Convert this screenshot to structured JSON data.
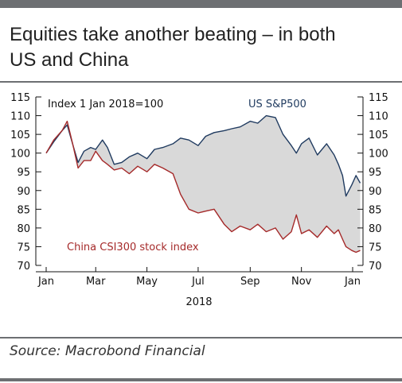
{
  "title_line1": "Equities take another beating – in both",
  "title_line2": "US and China",
  "source": "Source: Macrobond Financial",
  "chart_data": {
    "type": "line",
    "subtitle": "Index 1 Jan 2018=100",
    "xlabel": "2018",
    "x_ticks": [
      "Jan",
      "Mar",
      "May",
      "Jul",
      "Sep",
      "Nov",
      "Jan"
    ],
    "x_tick_dates": [
      "2018-01-01",
      "2018-03-01",
      "2018-05-01",
      "2018-07-01",
      "2018-09-01",
      "2018-11-01",
      "2019-01-01"
    ],
    "ylim": [
      70,
      115
    ],
    "yticks": [
      70,
      75,
      80,
      85,
      90,
      95,
      100,
      105,
      110,
      115
    ],
    "fill_between": true,
    "series": [
      {
        "name": "US S&P500",
        "color": "#1f3a5f",
        "x": [
          "2018-01-01",
          "2018-01-10",
          "2018-01-20",
          "2018-01-26",
          "2018-02-02",
          "2018-02-08",
          "2018-02-15",
          "2018-02-23",
          "2018-03-01",
          "2018-03-09",
          "2018-03-15",
          "2018-03-23",
          "2018-04-01",
          "2018-04-10",
          "2018-04-20",
          "2018-05-01",
          "2018-05-10",
          "2018-05-20",
          "2018-06-01",
          "2018-06-10",
          "2018-06-20",
          "2018-07-01",
          "2018-07-10",
          "2018-07-20",
          "2018-08-01",
          "2018-08-10",
          "2018-08-20",
          "2018-09-01",
          "2018-09-10",
          "2018-09-20",
          "2018-10-01",
          "2018-10-10",
          "2018-10-20",
          "2018-10-26",
          "2018-11-01",
          "2018-11-10",
          "2018-11-20",
          "2018-12-01",
          "2018-12-10",
          "2018-12-15",
          "2018-12-20",
          "2018-12-24",
          "2018-12-31",
          "2019-01-05",
          "2019-01-10"
        ],
        "y": [
          100,
          103,
          106,
          107.5,
          102,
          97.5,
          100.5,
          101.5,
          101,
          103.5,
          101.5,
          97,
          97.5,
          99,
          100,
          98.5,
          101,
          101.5,
          102.5,
          104,
          103.5,
          102,
          104.5,
          105.5,
          106,
          106.5,
          107,
          108.5,
          108,
          110,
          109.5,
          105,
          102,
          100,
          102.5,
          104,
          99.5,
          102.5,
          99.5,
          97,
          94,
          88.5,
          91.5,
          94,
          92
        ]
      },
      {
        "name": "China CSI300 stock index",
        "color": "#a52a2a",
        "x": [
          "2018-01-01",
          "2018-01-10",
          "2018-01-20",
          "2018-01-26",
          "2018-02-02",
          "2018-02-08",
          "2018-02-15",
          "2018-02-23",
          "2018-03-01",
          "2018-03-09",
          "2018-03-15",
          "2018-03-23",
          "2018-04-01",
          "2018-04-10",
          "2018-04-20",
          "2018-05-01",
          "2018-05-10",
          "2018-05-20",
          "2018-06-01",
          "2018-06-10",
          "2018-06-20",
          "2018-07-01",
          "2018-07-10",
          "2018-07-20",
          "2018-08-01",
          "2018-08-10",
          "2018-08-20",
          "2018-09-01",
          "2018-09-10",
          "2018-09-20",
          "2018-10-01",
          "2018-10-10",
          "2018-10-20",
          "2018-10-26",
          "2018-11-01",
          "2018-11-10",
          "2018-11-20",
          "2018-12-01",
          "2018-12-10",
          "2018-12-15",
          "2018-12-20",
          "2018-12-24",
          "2018-12-31",
          "2019-01-05",
          "2019-01-10"
        ],
        "y": [
          100,
          103.5,
          106,
          108.5,
          102,
          96,
          98,
          98,
          100.5,
          98,
          97,
          95.5,
          96,
          94.5,
          96.5,
          95,
          97,
          96,
          94.5,
          89,
          85,
          84,
          84.5,
          85,
          81,
          79,
          80.5,
          79.5,
          81,
          79,
          80,
          77,
          79,
          83.5,
          78.5,
          79.5,
          77.5,
          80.5,
          78.5,
          79.5,
          77,
          75,
          74,
          73.5,
          74
        ]
      }
    ]
  }
}
